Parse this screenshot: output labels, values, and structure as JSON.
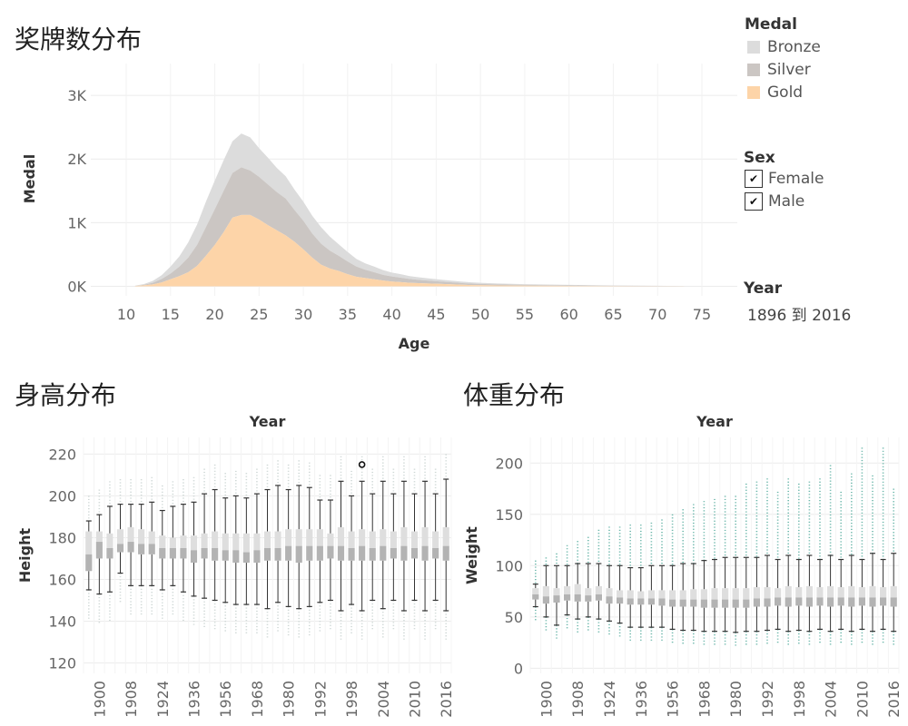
{
  "titles": {
    "medal_dist": "奖牌数分布",
    "height_dist": "身高分布",
    "weight_dist": "体重分布"
  },
  "legend": {
    "medal_title": "Medal",
    "medals": [
      {
        "label": "Bronze",
        "color": "#dcdcdc"
      },
      {
        "label": "Silver",
        "color": "#cbc6c3"
      },
      {
        "label": "Gold",
        "color": "#fdd4a8"
      }
    ],
    "sex_title": "Sex",
    "sex": [
      {
        "label": "Female",
        "checked": true
      },
      {
        "label": "Male",
        "checked": true
      }
    ],
    "year_title": "Year",
    "year_range": "1896 到 2016",
    "check_mark": "✔"
  },
  "chart_data": [
    {
      "type": "area",
      "name": "medal-area",
      "xlabel": "Age",
      "ylabel": "Medal",
      "xlim": [
        6,
        79
      ],
      "ylim": [
        -150,
        3500
      ],
      "xticks": [
        10,
        15,
        20,
        25,
        30,
        35,
        40,
        45,
        50,
        55,
        60,
        65,
        70,
        75
      ],
      "xtick_labels": [
        "10",
        "15",
        "20",
        "25",
        "30",
        "35",
        "40",
        "45",
        "50",
        "55",
        "60",
        "65",
        "70",
        "75"
      ],
      "yticks": [
        0,
        1000,
        2000,
        3000
      ],
      "ytick_labels": [
        "0K",
        "1K",
        "2K",
        "3K"
      ],
      "stacked": true,
      "x": [
        11,
        12,
        13,
        14,
        15,
        16,
        17,
        18,
        19,
        20,
        21,
        22,
        23,
        24,
        25,
        26,
        27,
        28,
        29,
        30,
        31,
        32,
        33,
        34,
        35,
        36,
        37,
        38,
        39,
        40,
        41,
        42,
        43,
        44,
        45,
        46,
        47,
        48,
        49,
        50,
        52,
        55,
        60,
        65,
        70,
        73
      ],
      "series": [
        {
          "name": "Gold",
          "color": "#fdd4a8",
          "values": [
            5,
            15,
            30,
            60,
            110,
            160,
            220,
            320,
            480,
            650,
            850,
            1080,
            1120,
            1120,
            1050,
            960,
            880,
            800,
            700,
            580,
            450,
            340,
            280,
            240,
            190,
            150,
            130,
            110,
            90,
            75,
            65,
            55,
            50,
            45,
            40,
            35,
            30,
            25,
            20,
            18,
            14,
            10,
            6,
            4,
            2,
            1
          ]
        },
        {
          "name": "Silver",
          "color": "#cbc6c3",
          "values": [
            2,
            8,
            25,
            55,
            90,
            150,
            230,
            330,
            450,
            560,
            650,
            700,
            750,
            700,
            670,
            640,
            600,
            580,
            500,
            450,
            380,
            330,
            280,
            240,
            200,
            160,
            130,
            110,
            90,
            80,
            70,
            60,
            52,
            45,
            40,
            35,
            30,
            25,
            22,
            20,
            16,
            12,
            8,
            5,
            3,
            1
          ]
        },
        {
          "name": "Bronze",
          "color": "#dcdcdc",
          "values": [
            3,
            12,
            30,
            60,
            110,
            160,
            240,
            320,
            400,
            450,
            480,
            500,
            530,
            520,
            450,
            420,
            380,
            350,
            320,
            300,
            280,
            260,
            220,
            180,
            150,
            120,
            100,
            90,
            75,
            60,
            55,
            45,
            40,
            36,
            32,
            28,
            25,
            22,
            20,
            17,
            14,
            12,
            8,
            5,
            3,
            1
          ]
        }
      ]
    },
    {
      "type": "box",
      "name": "height-box",
      "title": "Year",
      "ylabel": "Height",
      "ylim": [
        115,
        228
      ],
      "yticks": [
        120,
        140,
        160,
        180,
        200,
        220
      ],
      "ytick_labels": [
        "120",
        "140",
        "160",
        "180",
        "200",
        "220"
      ],
      "xtick_labels": [
        "1900",
        "1908",
        "1924",
        "1936",
        "1956",
        "1968",
        "1980",
        "1992",
        "1998",
        "2004",
        "2010",
        "2016"
      ],
      "years": [
        1896,
        1900,
        1904,
        1906,
        1908,
        1912,
        1920,
        1924,
        1928,
        1932,
        1936,
        1948,
        1952,
        1956,
        1960,
        1964,
        1968,
        1972,
        1976,
        1980,
        1984,
        1988,
        1992,
        1994,
        1996,
        1998,
        2000,
        2002,
        2004,
        2006,
        2008,
        2010,
        2012,
        2014,
        2016
      ],
      "boxes": [
        {
          "min": 155,
          "q1": 164,
          "med": 172,
          "q3": 183,
          "max": 188
        },
        {
          "min": 153,
          "q1": 170,
          "med": 178,
          "q3": 183,
          "max": 191
        },
        {
          "min": 154,
          "q1": 170,
          "med": 175,
          "q3": 182,
          "max": 195
        },
        {
          "min": 163,
          "q1": 173,
          "med": 177,
          "q3": 184,
          "max": 196
        },
        {
          "min": 157,
          "q1": 173,
          "med": 178,
          "q3": 185,
          "max": 196
        },
        {
          "min": 157,
          "q1": 172,
          "med": 177,
          "q3": 184,
          "max": 196
        },
        {
          "min": 157,
          "q1": 172,
          "med": 177,
          "q3": 183,
          "max": 197
        },
        {
          "min": 155,
          "q1": 170,
          "med": 175,
          "q3": 181,
          "max": 193
        },
        {
          "min": 157,
          "q1": 170,
          "med": 175,
          "q3": 180,
          "max": 195
        },
        {
          "min": 154,
          "q1": 170,
          "med": 175,
          "q3": 181,
          "max": 196
        },
        {
          "min": 152,
          "q1": 168,
          "med": 174,
          "q3": 181,
          "max": 197
        },
        {
          "min": 151,
          "q1": 170,
          "med": 175,
          "q3": 182,
          "max": 201
        },
        {
          "min": 150,
          "q1": 169,
          "med": 175,
          "q3": 183,
          "max": 203
        },
        {
          "min": 149,
          "q1": 169,
          "med": 174,
          "q3": 182,
          "max": 199
        },
        {
          "min": 148,
          "q1": 168,
          "med": 174,
          "q3": 182,
          "max": 200
        },
        {
          "min": 148,
          "q1": 168,
          "med": 173,
          "q3": 182,
          "max": 199
        },
        {
          "min": 148,
          "q1": 168,
          "med": 174,
          "q3": 182,
          "max": 201
        },
        {
          "min": 146,
          "q1": 169,
          "med": 175,
          "q3": 183,
          "max": 203
        },
        {
          "min": 149,
          "q1": 169,
          "med": 175,
          "q3": 183,
          "max": 205
        },
        {
          "min": 147,
          "q1": 169,
          "med": 176,
          "q3": 184,
          "max": 203
        },
        {
          "min": 146,
          "q1": 168,
          "med": 176,
          "q3": 184,
          "max": 205
        },
        {
          "min": 147,
          "q1": 169,
          "med": 176,
          "q3": 184,
          "max": 204
        },
        {
          "min": 149,
          "q1": 169,
          "med": 176,
          "q3": 184,
          "max": 198
        },
        {
          "min": 150,
          "q1": 170,
          "med": 176,
          "q3": 182,
          "max": 198
        },
        {
          "min": 145,
          "q1": 169,
          "med": 176,
          "q3": 185,
          "max": 207
        },
        {
          "min": 148,
          "q1": 169,
          "med": 175,
          "q3": 183,
          "max": 200
        },
        {
          "min": 145,
          "q1": 169,
          "med": 176,
          "q3": 184,
          "max": 207
        },
        {
          "min": 150,
          "q1": 169,
          "med": 175,
          "q3": 183,
          "max": 201
        },
        {
          "min": 146,
          "q1": 169,
          "med": 176,
          "q3": 184,
          "max": 207
        },
        {
          "min": 150,
          "q1": 170,
          "med": 175,
          "q3": 183,
          "max": 201
        },
        {
          "min": 145,
          "q1": 169,
          "med": 176,
          "q3": 185,
          "max": 207
        },
        {
          "min": 150,
          "q1": 170,
          "med": 175,
          "q3": 183,
          "max": 201
        },
        {
          "min": 145,
          "q1": 169,
          "med": 176,
          "q3": 185,
          "max": 207
        },
        {
          "min": 150,
          "q1": 170,
          "med": 175,
          "q3": 183,
          "max": 201
        },
        {
          "min": 145,
          "q1": 169,
          "med": 176,
          "q3": 185,
          "max": 208
        }
      ],
      "highlight_point": {
        "year_index": 26,
        "value": 215
      }
    },
    {
      "type": "box",
      "name": "weight-box",
      "title": "Year",
      "ylabel": "Weight",
      "ylim": [
        -5,
        225
      ],
      "yticks": [
        0,
        50,
        100,
        150,
        200
      ],
      "ytick_labels": [
        "0",
        "50",
        "100",
        "150",
        "200"
      ],
      "xtick_labels": [
        "1900",
        "1908",
        "1924",
        "1936",
        "1956",
        "1968",
        "1980",
        "1992",
        "1998",
        "2004",
        "2010",
        "2016"
      ],
      "years": [
        1896,
        1900,
        1904,
        1906,
        1908,
        1912,
        1920,
        1924,
        1928,
        1932,
        1936,
        1948,
        1952,
        1956,
        1960,
        1964,
        1968,
        1972,
        1976,
        1980,
        1984,
        1988,
        1992,
        1994,
        1996,
        1998,
        2000,
        2002,
        2004,
        2006,
        2008,
        2010,
        2012,
        2014,
        2016
      ],
      "boxes": [
        {
          "min": 60,
          "q1": 67,
          "med": 72,
          "q3": 78,
          "max": 82
        },
        {
          "min": 50,
          "q1": 63,
          "med": 70,
          "q3": 80,
          "max": 100
        },
        {
          "min": 42,
          "q1": 64,
          "med": 71,
          "q3": 78,
          "max": 100
        },
        {
          "min": 52,
          "q1": 66,
          "med": 72,
          "q3": 80,
          "max": 100
        },
        {
          "min": 48,
          "q1": 65,
          "med": 72,
          "q3": 82,
          "max": 102
        },
        {
          "min": 50,
          "q1": 65,
          "med": 71,
          "q3": 78,
          "max": 102
        },
        {
          "min": 48,
          "q1": 66,
          "med": 72,
          "q3": 80,
          "max": 102
        },
        {
          "min": 46,
          "q1": 63,
          "med": 70,
          "q3": 78,
          "max": 100
        },
        {
          "min": 44,
          "q1": 63,
          "med": 69,
          "q3": 76,
          "max": 100
        },
        {
          "min": 40,
          "q1": 62,
          "med": 68,
          "q3": 76,
          "max": 98
        },
        {
          "min": 40,
          "q1": 62,
          "med": 68,
          "q3": 75,
          "max": 98
        },
        {
          "min": 40,
          "q1": 62,
          "med": 68,
          "q3": 76,
          "max": 100
        },
        {
          "min": 40,
          "q1": 61,
          "med": 68,
          "q3": 76,
          "max": 100
        },
        {
          "min": 38,
          "q1": 60,
          "med": 67,
          "q3": 76,
          "max": 100
        },
        {
          "min": 37,
          "q1": 60,
          "med": 67,
          "q3": 76,
          "max": 102
        },
        {
          "min": 37,
          "q1": 60,
          "med": 67,
          "q3": 77,
          "max": 102
        },
        {
          "min": 36,
          "q1": 59,
          "med": 67,
          "q3": 77,
          "max": 105
        },
        {
          "min": 36,
          "q1": 59,
          "med": 67,
          "q3": 78,
          "max": 106
        },
        {
          "min": 36,
          "q1": 59,
          "med": 67,
          "q3": 78,
          "max": 108
        },
        {
          "min": 35,
          "q1": 59,
          "med": 67,
          "q3": 78,
          "max": 108
        },
        {
          "min": 36,
          "q1": 59,
          "med": 67,
          "q3": 78,
          "max": 108
        },
        {
          "min": 36,
          "q1": 60,
          "med": 68,
          "q3": 79,
          "max": 108
        },
        {
          "min": 37,
          "q1": 60,
          "med": 68,
          "q3": 79,
          "max": 110
        },
        {
          "min": 38,
          "q1": 61,
          "med": 69,
          "q3": 78,
          "max": 106
        },
        {
          "min": 36,
          "q1": 60,
          "med": 69,
          "q3": 80,
          "max": 110
        },
        {
          "min": 37,
          "q1": 61,
          "med": 69,
          "q3": 79,
          "max": 106
        },
        {
          "min": 36,
          "q1": 60,
          "med": 69,
          "q3": 80,
          "max": 110
        },
        {
          "min": 38,
          "q1": 61,
          "med": 69,
          "q3": 79,
          "max": 106
        },
        {
          "min": 36,
          "q1": 60,
          "med": 69,
          "q3": 80,
          "max": 110
        },
        {
          "min": 38,
          "q1": 61,
          "med": 69,
          "q3": 79,
          "max": 106
        },
        {
          "min": 36,
          "q1": 60,
          "med": 69,
          "q3": 80,
          "max": 110
        },
        {
          "min": 38,
          "q1": 61,
          "med": 69,
          "q3": 79,
          "max": 106
        },
        {
          "min": 36,
          "q1": 60,
          "med": 69,
          "q3": 80,
          "max": 112
        },
        {
          "min": 38,
          "q1": 61,
          "med": 69,
          "q3": 79,
          "max": 106
        },
        {
          "min": 36,
          "q1": 60,
          "med": 69,
          "q3": 80,
          "max": 112
        }
      ],
      "outlier_color": "#6fb8ac",
      "outlier_tops": [
        105,
        108,
        112,
        120,
        124,
        128,
        135,
        138,
        138,
        140,
        140,
        142,
        145,
        150,
        155,
        160,
        163,
        165,
        168,
        168,
        180,
        182,
        185,
        172,
        185,
        180,
        182,
        185,
        198,
        172,
        190,
        215,
        188,
        215,
        175
      ]
    }
  ]
}
